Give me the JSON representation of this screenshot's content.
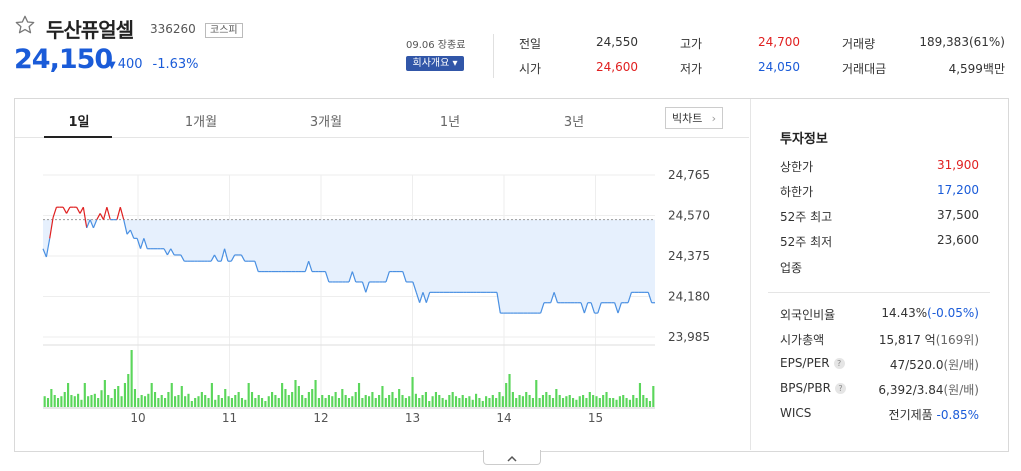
{
  "stock": {
    "name": "두산퓨얼셀",
    "code": "336260",
    "market": "코스피",
    "price": "24,150",
    "change": "400",
    "change_rate": "-1.63%",
    "date_label": "09.06 장종료",
    "company_btn": "회사개요 ▾"
  },
  "quote": {
    "prev_label": "전일",
    "prev": "24,550",
    "open_label": "시가",
    "open": "24,600",
    "high_label": "고가",
    "high": "24,700",
    "low_label": "저가",
    "low": "24,050",
    "vol_label": "거래량",
    "vol": "189,383(61%)",
    "amt_label": "거래대금",
    "amt": "4,599백만"
  },
  "tabs": [
    "1일",
    "1개월",
    "3개월",
    "1년",
    "3년"
  ],
  "big_chart_btn": "빅차트",
  "info": {
    "title": "투자정보",
    "upper_label": "상한가",
    "upper": "31,900",
    "lower_label": "하한가",
    "lower": "17,200",
    "high52_label": "52주 최고",
    "high52": "37,500",
    "low52_label": "52주 최저",
    "low52": "23,600",
    "sector_label": "업종",
    "foreign_label": "외국인비율",
    "foreign": "14.43%",
    "foreign_chg": "(-0.05%)",
    "cap_label": "시가총액",
    "cap": "15,817 억",
    "cap_rank": "(169위)",
    "eps_label": "EPS/PER",
    "eps": "47/520.0",
    "eps_unit": "(원/배)",
    "bps_label": "BPS/PBR",
    "bps": "6,392/3.84",
    "bps_unit": "(원/배)",
    "wics_label": "WICS",
    "wics": "전기제품",
    "wics_chg": "-0.85%"
  },
  "colors": {
    "up": "#e02020",
    "down": "#1a5bd8",
    "line": "#4a90e2",
    "fill": "#e6f0fd",
    "volume": "#5bd65b"
  },
  "chart_data": {
    "type": "line",
    "x_labels": [
      "10",
      "11",
      "12",
      "13",
      "14",
      "15"
    ],
    "y_ticks": [
      "24,765",
      "24,570",
      "24,375",
      "24,180",
      "23,985"
    ],
    "ylim": [
      23985,
      24765
    ],
    "prev_close": 24550,
    "price": [
      24410,
      24370,
      24460,
      24560,
      24610,
      24610,
      24610,
      24580,
      24610,
      24610,
      24610,
      24580,
      24610,
      24510,
      24550,
      24510,
      24550,
      24580,
      24550,
      24610,
      24550,
      24550,
      24550,
      24610,
      24550,
      24480,
      24500,
      24460,
      24460,
      24410,
      24460,
      24410,
      24410,
      24410,
      24410,
      24410,
      24410,
      24380,
      24410,
      24380,
      24380,
      24380,
      24350,
      24350,
      24350,
      24350,
      24350,
      24350,
      24350,
      24350,
      24350,
      24380,
      24350,
      24350,
      24410,
      24350,
      24350,
      24380,
      24380,
      24380,
      24350,
      24350,
      24350,
      24350,
      24300,
      24300,
      24300,
      24300,
      24300,
      24300,
      24300,
      24300,
      24300,
      24300,
      24300,
      24300,
      24300,
      24300,
      24300,
      24350,
      24300,
      24300,
      24300,
      24300,
      24300,
      24250,
      24250,
      24250,
      24250,
      24250,
      24250,
      24250,
      24300,
      24250,
      24250,
      24250,
      24200,
      24250,
      24250,
      24250,
      24250,
      24250,
      24250,
      24300,
      24300,
      24300,
      24300,
      24300,
      24250,
      24250,
      24250,
      24200,
      24150,
      24200,
      24150,
      24200,
      24200,
      24200,
      24200,
      24200,
      24200,
      24200,
      24200,
      24200,
      24200,
      24200,
      24200,
      24200,
      24200,
      24200,
      24200,
      24200,
      24200,
      24200,
      24200,
      24200,
      24100,
      24100,
      24100,
      24100,
      24100,
      24100,
      24100,
      24100,
      24100,
      24100,
      24100,
      24100,
      24100,
      24150,
      24150,
      24150,
      24200,
      24150,
      24150,
      24150,
      24150,
      24150,
      24150,
      24150,
      24150,
      24100,
      24150,
      24150,
      24100,
      24100,
      24150,
      24150,
      24150,
      24150,
      24150,
      24100,
      24150,
      24150,
      24150,
      24200,
      24200,
      24200,
      24200,
      24200,
      24200,
      24150,
      24150
    ],
    "volume": [
      18,
      15,
      30,
      20,
      15,
      18,
      25,
      40,
      20,
      18,
      22,
      12,
      40,
      18,
      20,
      22,
      15,
      28,
      45,
      20,
      15,
      30,
      35,
      18,
      40,
      55,
      95,
      30,
      15,
      20,
      18,
      22,
      40,
      25,
      15,
      20,
      15,
      25,
      40,
      18,
      20,
      35,
      18,
      22,
      10,
      15,
      18,
      25,
      20,
      15,
      40,
      12,
      20,
      15,
      30,
      18,
      15,
      20,
      25,
      15,
      12,
      40,
      25,
      15,
      20,
      15,
      10,
      18,
      25,
      20,
      15,
      40,
      30,
      20,
      25,
      45,
      35,
      20,
      15,
      25,
      30,
      45,
      15,
      20,
      15,
      20,
      18,
      25,
      15,
      30,
      20,
      15,
      18,
      25,
      40,
      15,
      20,
      18,
      25,
      15,
      20,
      35,
      15,
      20,
      25,
      15,
      30,
      20,
      15,
      18,
      50,
      22,
      15,
      20,
      25,
      10,
      18,
      25,
      20,
      15,
      12,
      20,
      25,
      18,
      15,
      20,
      15,
      18,
      12,
      22,
      15,
      10,
      18,
      15,
      20,
      15,
      25,
      18,
      40,
      55,
      25,
      15,
      20,
      18,
      25,
      20,
      15,
      45,
      15,
      20,
      25,
      20,
      15,
      30,
      20,
      15,
      18,
      20,
      15,
      12,
      18,
      20,
      15,
      25,
      20,
      18,
      15,
      20,
      25,
      15,
      15,
      12,
      18,
      20,
      15,
      12,
      20,
      15,
      40,
      20,
      15,
      10,
      35
    ]
  }
}
